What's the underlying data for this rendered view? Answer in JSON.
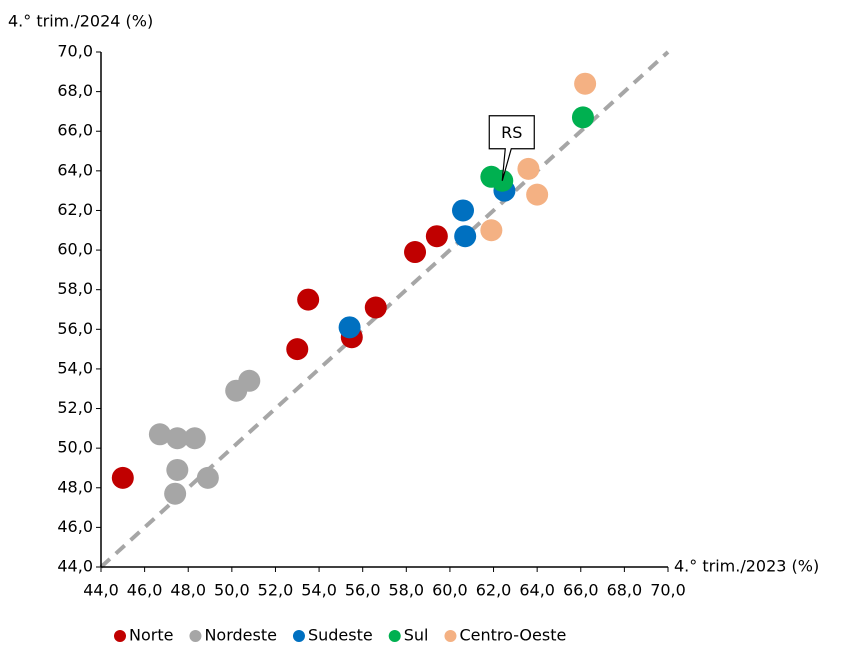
{
  "chart_data": {
    "type": "scatter",
    "xlabel": "4.° trim./2023 (%)",
    "ylabel": "4.° trim./2024 (%)",
    "xlim": [
      44,
      70
    ],
    "ylim": [
      44,
      70
    ],
    "xticks": [
      {
        "value": 44,
        "label": "44,0"
      },
      {
        "value": 46,
        "label": "46,0"
      },
      {
        "value": 48,
        "label": "48,0"
      },
      {
        "value": 50,
        "label": "50,0"
      },
      {
        "value": 52,
        "label": "52,0"
      },
      {
        "value": 54,
        "label": "54,0"
      },
      {
        "value": 56,
        "label": "56,0"
      },
      {
        "value": 58,
        "label": "58,0"
      },
      {
        "value": 60,
        "label": "60,0"
      },
      {
        "value": 62,
        "label": "62,0"
      },
      {
        "value": 64,
        "label": "64,0"
      },
      {
        "value": 66,
        "label": "66,0"
      },
      {
        "value": 68,
        "label": "68,0"
      },
      {
        "value": 70,
        "label": "70,0"
      }
    ],
    "yticks": [
      {
        "value": 44,
        "label": "44,0"
      },
      {
        "value": 46,
        "label": "46,0"
      },
      {
        "value": 48,
        "label": "48,0"
      },
      {
        "value": 50,
        "label": "50,0"
      },
      {
        "value": 52,
        "label": "52,0"
      },
      {
        "value": 54,
        "label": "54,0"
      },
      {
        "value": 56,
        "label": "56,0"
      },
      {
        "value": 58,
        "label": "58,0"
      },
      {
        "value": 60,
        "label": "60,0"
      },
      {
        "value": 62,
        "label": "62,0"
      },
      {
        "value": 64,
        "label": "64,0"
      },
      {
        "value": 66,
        "label": "66,0"
      },
      {
        "value": 68,
        "label": "68,0"
      },
      {
        "value": 70,
        "label": "70,0"
      }
    ],
    "grid": false,
    "legend": "bottom",
    "diagonal_color": "#a6a6a6",
    "series": [
      {
        "name": "Norte",
        "color": "#c00000",
        "x": [
          45.0,
          53.0,
          53.5,
          55.5,
          56.6,
          58.4,
          59.4
        ],
        "y": [
          48.5,
          55.0,
          57.5,
          55.6,
          57.1,
          59.9,
          60.7
        ]
      },
      {
        "name": "Nordeste",
        "color": "#a6a6a6",
        "x": [
          46.7,
          47.5,
          48.3,
          47.5,
          47.4,
          48.9,
          50.2,
          50.8
        ],
        "y": [
          50.7,
          50.5,
          50.5,
          48.9,
          47.7,
          48.5,
          52.9,
          53.4
        ]
      },
      {
        "name": "Sudeste",
        "color": "#0070c0",
        "x": [
          55.4,
          60.6,
          60.7,
          62.5
        ],
        "y": [
          56.1,
          62.0,
          60.7,
          63.0
        ]
      },
      {
        "name": "Sul",
        "color": "#00b050",
        "x": [
          61.9,
          62.4,
          66.1
        ],
        "y": [
          63.7,
          63.5,
          66.7
        ]
      },
      {
        "name": "Centro-Oeste",
        "color": "#f4b183",
        "x": [
          61.9,
          63.6,
          64.0,
          66.2
        ],
        "y": [
          61.0,
          64.1,
          62.8,
          68.4
        ]
      }
    ],
    "annotations": [
      {
        "text": "RS"
      }
    ]
  }
}
